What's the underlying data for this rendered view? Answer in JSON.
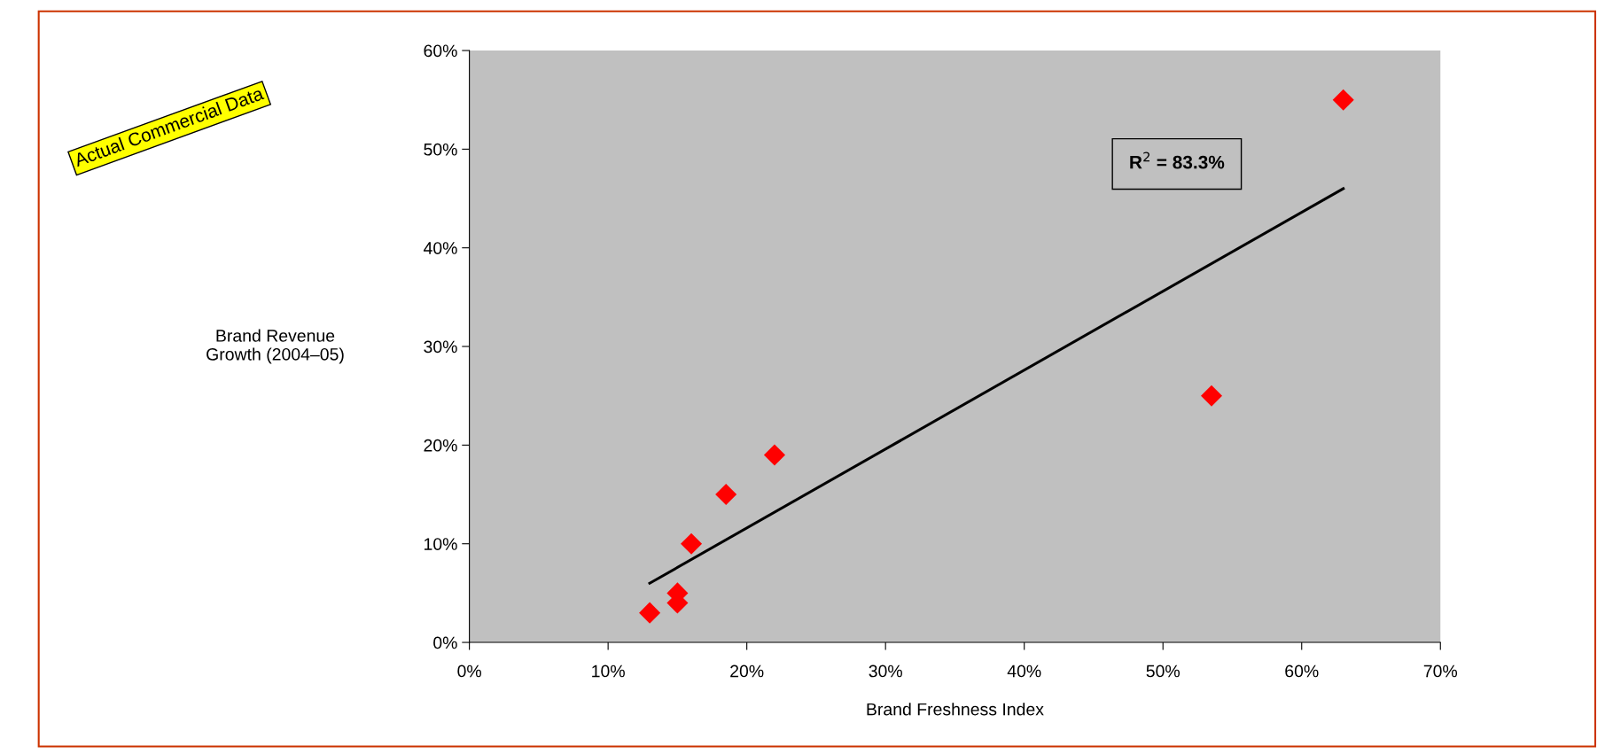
{
  "chart_data": {
    "type": "scatter",
    "xlabel": "Brand Freshness Index",
    "ylabel": "Brand Revenue\nGrowth (2004–05)",
    "series": [
      {
        "color": "#ff0000",
        "marker": "diamond",
        "x": [
          13,
          15,
          15,
          16,
          18.5,
          22,
          53.5,
          63
        ],
        "values": [
          3,
          5,
          4,
          10,
          15,
          19,
          25,
          55
        ]
      },
      {
        "type": "line",
        "color": "#000000",
        "marker": "none",
        "x": [
          13,
          63
        ],
        "values": [
          6,
          46
        ]
      }
    ],
    "annotations": [
      "Actual Commercial Data",
      "R$^{2}$ = 83.3%"
    ],
    "xlim": [
      0,
      70
    ],
    "ylim": [
      0,
      60
    ],
    "xticks": [
      {
        "value": 0,
        "label": "0%"
      },
      {
        "value": 10,
        "label": "10%"
      },
      {
        "value": 20,
        "label": "20%"
      },
      {
        "value": 30,
        "label": "30%"
      },
      {
        "value": 40,
        "label": "40%"
      },
      {
        "value": 50,
        "label": "50%"
      },
      {
        "value": 60,
        "label": "60%"
      },
      {
        "value": 70,
        "label": "70%"
      }
    ],
    "yticks": [
      {
        "value": 0,
        "label": "0%"
      },
      {
        "value": 10,
        "label": "10%"
      },
      {
        "value": 20,
        "label": "20%"
      },
      {
        "value": 30,
        "label": "30%"
      },
      {
        "value": 40,
        "label": "40%"
      },
      {
        "value": 50,
        "label": "50%"
      },
      {
        "value": 60,
        "label": "60%"
      }
    ],
    "grid": false,
    "legend": false
  }
}
